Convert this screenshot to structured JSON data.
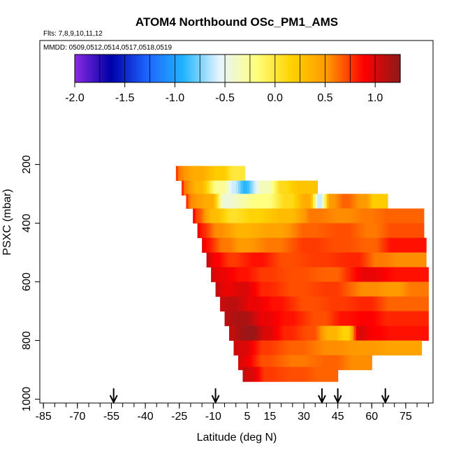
{
  "chart_data": {
    "type": "heatmap",
    "title": "ATOM4 Northbound OSc_PM1_AMS",
    "flights_note": "Flts: 7,8,9,10,11,12",
    "dates_note": "MMDD: 0509,0512,0514,0517,0518,0519",
    "xlabel": "Latitude (deg N)",
    "ylabel": "PSXC (mbar)",
    "xlim": [
      -88,
      88
    ],
    "ylim": [
      1010,
      0
    ],
    "x_ticks": [
      -85,
      -70,
      -55,
      -40,
      -25,
      -10,
      5,
      15,
      30,
      45,
      60,
      75
    ],
    "x_minor_step": 5,
    "y_ticks": [
      200,
      400,
      600,
      800,
      1000
    ],
    "colorbar": {
      "range": [
        -2.0,
        1.25
      ],
      "ticks": [
        -2.0,
        -1.5,
        -1.0,
        -0.5,
        0.0,
        0.5,
        1.0
      ],
      "tick_labels": [
        "-2.0",
        "-1.5",
        "-1.0",
        "-0.5",
        "0.0",
        "0.5",
        "1.0"
      ],
      "colors": [
        "#8a2be2",
        "#0000a8",
        "#1e64ff",
        "#20b4ff",
        "#e6f5ff",
        "#ffff80",
        "#ffd200",
        "#ff9600",
        "#ff0000",
        "#8b1a1a"
      ]
    },
    "profile_arrows_lat": [
      -54,
      -9,
      38,
      45,
      66
    ],
    "layers": [
      {
        "p": 230,
        "lat0": -26.5,
        "lat1": 4,
        "segs": [
          {
            "from": -26.5,
            "v": 0.9
          },
          {
            "from": -25,
            "v": 0.6
          },
          {
            "from": -15,
            "v": 0.4
          },
          {
            "from": -5,
            "v": 0.2
          },
          {
            "from": 0,
            "v": 0.0
          }
        ]
      },
      {
        "p": 280,
        "lat0": -24,
        "lat1": 36,
        "segs": [
          {
            "from": -24,
            "v": 0.9
          },
          {
            "from": -22,
            "v": 0.6
          },
          {
            "from": -15,
            "v": 0.35
          },
          {
            "from": -5,
            "v": -0.25
          },
          {
            "from": 0,
            "v": -0.6
          },
          {
            "from": 5,
            "v": -0.9
          },
          {
            "from": 15,
            "v": -0.35
          },
          {
            "from": 22,
            "v": 0.1
          },
          {
            "from": 30,
            "v": 0.25
          }
        ]
      },
      {
        "p": 325,
        "lat0": -22,
        "lat1": 67,
        "segs": [
          {
            "from": -22,
            "v": 0.85
          },
          {
            "from": -19,
            "v": 0.55
          },
          {
            "from": -10,
            "v": 0.4
          },
          {
            "from": -3,
            "v": -0.45
          },
          {
            "from": 15,
            "v": -0.2
          },
          {
            "from": 25,
            "v": 0.1
          },
          {
            "from": 33,
            "v": 0.4
          },
          {
            "from": 38,
            "v": -0.6
          },
          {
            "from": 43,
            "v": 0.5
          },
          {
            "from": 50,
            "v": 0.65
          },
          {
            "from": 58,
            "v": 0.5
          },
          {
            "from": 62,
            "v": 0.2
          }
        ]
      },
      {
        "p": 375,
        "lat0": -19,
        "lat1": 83,
        "segs": [
          {
            "from": -19,
            "v": 0.95
          },
          {
            "from": -16,
            "v": 0.7
          },
          {
            "from": -8,
            "v": 0.3
          },
          {
            "from": 0,
            "v": 0.05
          },
          {
            "from": 10,
            "v": 0.15
          },
          {
            "from": 25,
            "v": 0.3
          },
          {
            "from": 37,
            "v": 0.6
          },
          {
            "from": 50,
            "v": 0.55
          },
          {
            "from": 60,
            "v": 0.6
          },
          {
            "from": 70,
            "v": 0.65
          }
        ]
      },
      {
        "p": 425,
        "lat0": -17,
        "lat1": 83,
        "segs": [
          {
            "from": -17,
            "v": 1.0
          },
          {
            "from": -14,
            "v": 0.8
          },
          {
            "from": -6,
            "v": 0.55
          },
          {
            "from": 5,
            "v": 0.35
          },
          {
            "from": 20,
            "v": 0.45
          },
          {
            "from": 35,
            "v": 0.65
          },
          {
            "from": 50,
            "v": 0.7
          },
          {
            "from": 62,
            "v": 0.6
          },
          {
            "from": 72,
            "v": 0.7
          }
        ]
      },
      {
        "p": 475,
        "lat0": -15,
        "lat1": 84,
        "segs": [
          {
            "from": -15,
            "v": 1.05
          },
          {
            "from": -12,
            "v": 0.85
          },
          {
            "from": -3,
            "v": 0.6
          },
          {
            "from": 5,
            "v": 0.5
          },
          {
            "from": 20,
            "v": 0.6
          },
          {
            "from": 35,
            "v": 0.75
          },
          {
            "from": 50,
            "v": 0.7
          },
          {
            "from": 62,
            "v": 0.65
          },
          {
            "from": 72,
            "v": 0.85
          }
        ]
      },
      {
        "p": 525,
        "lat0": -13,
        "lat1": 84,
        "segs": [
          {
            "from": -13,
            "v": 1.1
          },
          {
            "from": -8,
            "v": 0.9
          },
          {
            "from": 0,
            "v": 0.75
          },
          {
            "from": 12,
            "v": 0.85
          },
          {
            "from": 25,
            "v": 0.7
          },
          {
            "from": 40,
            "v": 0.75
          },
          {
            "from": 55,
            "v": 0.8
          },
          {
            "from": 65,
            "v": 0.6
          },
          {
            "from": 75,
            "v": 0.55
          }
        ]
      },
      {
        "p": 575,
        "lat0": -11,
        "lat1": 85,
        "segs": [
          {
            "from": -11,
            "v": 1.05
          },
          {
            "from": -5,
            "v": 0.95
          },
          {
            "from": 5,
            "v": 0.85
          },
          {
            "from": 15,
            "v": 0.75
          },
          {
            "from": 30,
            "v": 0.7
          },
          {
            "from": 45,
            "v": 0.65
          },
          {
            "from": 62,
            "v": 0.95
          },
          {
            "from": 75,
            "v": 0.85
          }
        ]
      },
      {
        "p": 625,
        "lat0": -9,
        "lat1": 85,
        "segs": [
          {
            "from": -9,
            "v": 1.1
          },
          {
            "from": -3,
            "v": 0.95
          },
          {
            "from": 5,
            "v": 1.0
          },
          {
            "from": 15,
            "v": 0.8
          },
          {
            "from": 30,
            "v": 0.7
          },
          {
            "from": 45,
            "v": 0.75
          },
          {
            "from": 62,
            "v": 0.55
          },
          {
            "from": 72,
            "v": 0.5
          },
          {
            "from": 80,
            "v": 0.6
          }
        ]
      },
      {
        "p": 675,
        "lat0": -7,
        "lat1": 85,
        "segs": [
          {
            "from": -7,
            "v": 1.05
          },
          {
            "from": 0,
            "v": 1.1
          },
          {
            "from": 10,
            "v": 0.95
          },
          {
            "from": 20,
            "v": 0.85
          },
          {
            "from": 35,
            "v": 0.7
          },
          {
            "from": 48,
            "v": 0.75
          },
          {
            "from": 60,
            "v": 0.8
          },
          {
            "from": 72,
            "v": 0.65
          }
        ]
      },
      {
        "p": 725,
        "lat0": -5,
        "lat1": 85,
        "segs": [
          {
            "from": -5,
            "v": 1.1
          },
          {
            "from": 5,
            "v": 1.15
          },
          {
            "from": 15,
            "v": 0.95
          },
          {
            "from": 25,
            "v": 0.85
          },
          {
            "from": 40,
            "v": 0.7
          },
          {
            "from": 50,
            "v": 0.85
          },
          {
            "from": 60,
            "v": 0.9
          },
          {
            "from": 70,
            "v": 0.8
          }
        ]
      },
      {
        "p": 775,
        "lat0": -3,
        "lat1": 85,
        "segs": [
          {
            "from": -3,
            "v": 1.05
          },
          {
            "from": 8,
            "v": 1.2
          },
          {
            "from": 15,
            "v": 1.0
          },
          {
            "from": 25,
            "v": 0.8
          },
          {
            "from": 35,
            "v": 0.7
          },
          {
            "from": 44,
            "v": 0.35
          },
          {
            "from": 50,
            "v": 0.15
          },
          {
            "from": 56,
            "v": 1.0
          },
          {
            "from": 62,
            "v": 0.9
          },
          {
            "from": 72,
            "v": 0.85
          }
        ]
      },
      {
        "p": 825,
        "lat0": -1,
        "lat1": 82,
        "segs": [
          {
            "from": -1,
            "v": 1.05
          },
          {
            "from": 5,
            "v": 1.0
          },
          {
            "from": 15,
            "v": 0.75
          },
          {
            "from": 30,
            "v": 0.65
          },
          {
            "from": 45,
            "v": 0.55
          },
          {
            "from": 60,
            "v": 0.5
          },
          {
            "from": 72,
            "v": 0.45
          }
        ]
      },
      {
        "p": 875,
        "lat0": 1,
        "lat1": 60,
        "segs": [
          {
            "from": 1,
            "v": 1.05
          },
          {
            "from": 5,
            "v": 0.95
          },
          {
            "from": 15,
            "v": 0.7
          },
          {
            "from": 30,
            "v": 0.6
          },
          {
            "from": 45,
            "v": 0.65
          },
          {
            "from": 55,
            "v": 0.55
          }
        ]
      },
      {
        "p": 915,
        "lat0": 3,
        "lat1": 45,
        "segs": [
          {
            "from": 3,
            "v": 1.1
          },
          {
            "from": 8,
            "v": 1.0
          },
          {
            "from": 15,
            "v": 0.75
          },
          {
            "from": 30,
            "v": 0.7
          },
          {
            "from": 40,
            "v": 0.65
          }
        ]
      }
    ]
  }
}
